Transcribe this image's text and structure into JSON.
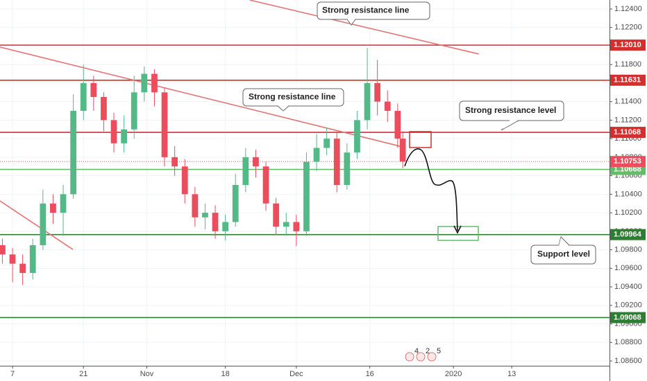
{
  "chart_data": {
    "type": "candlestick",
    "x": [
      -2,
      0,
      2,
      4,
      6,
      8,
      10,
      12,
      14,
      16,
      18,
      20,
      22,
      24,
      26,
      28,
      30,
      32,
      34,
      36,
      38,
      40,
      42,
      44,
      46,
      48,
      50,
      52,
      54,
      56,
      58,
      60,
      62,
      64,
      66,
      68,
      70,
      72,
      74,
      76,
      77
    ],
    "open": [
      1.0985,
      1.0975,
      1.0965,
      1.0955,
      1.0985,
      1.103,
      1.102,
      1.104,
      1.113,
      1.116,
      1.1145,
      1.112,
      1.1095,
      1.111,
      1.115,
      1.117,
      1.115,
      1.108,
      1.107,
      1.104,
      1.1015,
      1.102,
      1.1,
      1.101,
      1.105,
      1.108,
      1.107,
      1.103,
      1.1005,
      1.101,
      1.1,
      1.1075,
      1.109,
      1.11,
      1.105,
      1.1085,
      1.112,
      1.116,
      1.114,
      1.113,
      1.11
    ],
    "high": [
      1.0992,
      1.0982,
      1.0975,
      1.0992,
      1.1045,
      1.104,
      1.105,
      1.1148,
      1.118,
      1.1168,
      1.115,
      1.1128,
      1.1125,
      1.1168,
      1.1178,
      1.1175,
      1.1155,
      1.1092,
      1.1078,
      1.1048,
      1.103,
      1.1028,
      1.1018,
      1.1062,
      1.109,
      1.1088,
      1.1075,
      1.1036,
      1.102,
      1.1018,
      1.1085,
      1.1105,
      1.1112,
      1.1106,
      1.1095,
      1.113,
      1.1198,
      1.1185,
      1.1152,
      1.1138,
      1.1108
    ],
    "low": [
      1.0965,
      1.0945,
      1.0942,
      1.0948,
      1.098,
      1.1008,
      1.0995,
      1.1035,
      1.112,
      1.113,
      1.1108,
      1.1085,
      1.1085,
      1.11,
      1.114,
      1.1135,
      1.107,
      1.106,
      1.103,
      1.1005,
      1.1002,
      1.0992,
      1.099,
      1.1005,
      1.1042,
      1.1058,
      1.1022,
      1.0996,
      1.0995,
      1.0984,
      1.0995,
      1.1065,
      1.1082,
      1.1042,
      1.1045,
      1.1078,
      1.111,
      1.1125,
      1.1118,
      1.109,
      1.1068
    ],
    "close": [
      1.0975,
      1.0965,
      1.0955,
      1.0985,
      1.103,
      1.102,
      1.104,
      1.113,
      1.116,
      1.1145,
      1.112,
      1.1095,
      1.111,
      1.115,
      1.117,
      1.115,
      1.108,
      1.107,
      1.104,
      1.1015,
      1.102,
      1.1,
      1.101,
      1.105,
      1.108,
      1.107,
      1.103,
      1.1005,
      1.101,
      1.1,
      1.1075,
      1.109,
      1.11,
      1.105,
      1.1085,
      1.112,
      1.116,
      1.114,
      1.113,
      1.11,
      1.10753
    ],
    "up_color": "#53b987",
    "down_color": "#eb4d5c",
    "xlim": [
      -2.47,
      117.8
    ],
    "xticks": [
      {
        "value": 0,
        "label": "7"
      },
      {
        "value": 14,
        "label": "21"
      },
      {
        "value": 26.5,
        "label": "Nov"
      },
      {
        "value": 42,
        "label": "18"
      },
      {
        "value": 56,
        "label": "Dec"
      },
      {
        "value": 70.5,
        "label": "16"
      },
      {
        "value": 87,
        "label": "2020"
      },
      {
        "value": 98.5,
        "label": "13"
      }
    ],
    "ylim": [
      1.08548,
      1.12497
    ],
    "yticks": [
      {
        "value": 1.124,
        "label": "1.12400"
      },
      {
        "value": 1.122,
        "label": "1.12200"
      },
      {
        "value": 1.12,
        "label": "1.12000"
      },
      {
        "value": 1.118,
        "label": "1.11800"
      },
      {
        "value": 1.116,
        "label": "1.11600"
      },
      {
        "value": 1.114,
        "label": "1.11400"
      },
      {
        "value": 1.112,
        "label": "1.11200"
      },
      {
        "value": 1.11,
        "label": "1.11000"
      },
      {
        "value": 1.108,
        "label": "1.10800"
      },
      {
        "value": 1.106,
        "label": "1.10600"
      },
      {
        "value": 1.104,
        "label": "1.10400"
      },
      {
        "value": 1.102,
        "label": "1.10200"
      },
      {
        "value": 1.1,
        "label": "1.10000"
      },
      {
        "value": 1.098,
        "label": "1.09800"
      },
      {
        "value": 1.096,
        "label": "1.09600"
      },
      {
        "value": 1.094,
        "label": "1.09400"
      },
      {
        "value": 1.092,
        "label": "1.09200"
      },
      {
        "value": 1.09,
        "label": "1.09000"
      },
      {
        "value": 1.088,
        "label": "1.08800"
      },
      {
        "value": 1.086,
        "label": "1.08600"
      }
    ],
    "grid": true,
    "levels": [
      {
        "value": 1.1201,
        "label": "1.12010",
        "color": "#d32f2f"
      },
      {
        "value": 1.11631,
        "label": "1.11631",
        "color": "#d32f2f"
      },
      {
        "value": 1.11068,
        "label": "1.11068",
        "color": "#d32f2f"
      },
      {
        "value": 1.10668,
        "label": "1.10668",
        "color": "#66bb6a"
      },
      {
        "value": 1.09964,
        "label": "1.09964",
        "color": "#2e7d32"
      },
      {
        "value": 1.09068,
        "label": "1.09068",
        "color": "#2e7d32"
      }
    ],
    "current_price": {
      "value": 1.10753,
      "label": "1.10753",
      "color": "#eb4d5c"
    },
    "trendlines": [
      {
        "start": [
          46.8,
          1.12497
        ],
        "end": [
          92,
          1.11914
        ],
        "color": "#e57373"
      },
      {
        "start": [
          -2.47,
          1.11989
        ],
        "end": [
          77,
          1.10911
        ],
        "color": "#e57373"
      },
      {
        "start": [
          -2.47,
          1.10328
        ],
        "end": [
          11.9,
          1.09804
        ],
        "color": "#e57373"
      }
    ],
    "annotations": [
      "Strong resistance line",
      "Strong resistance line",
      "Strong resistance level",
      "Support level"
    ],
    "events": [
      "4",
      "2",
      "5"
    ]
  }
}
